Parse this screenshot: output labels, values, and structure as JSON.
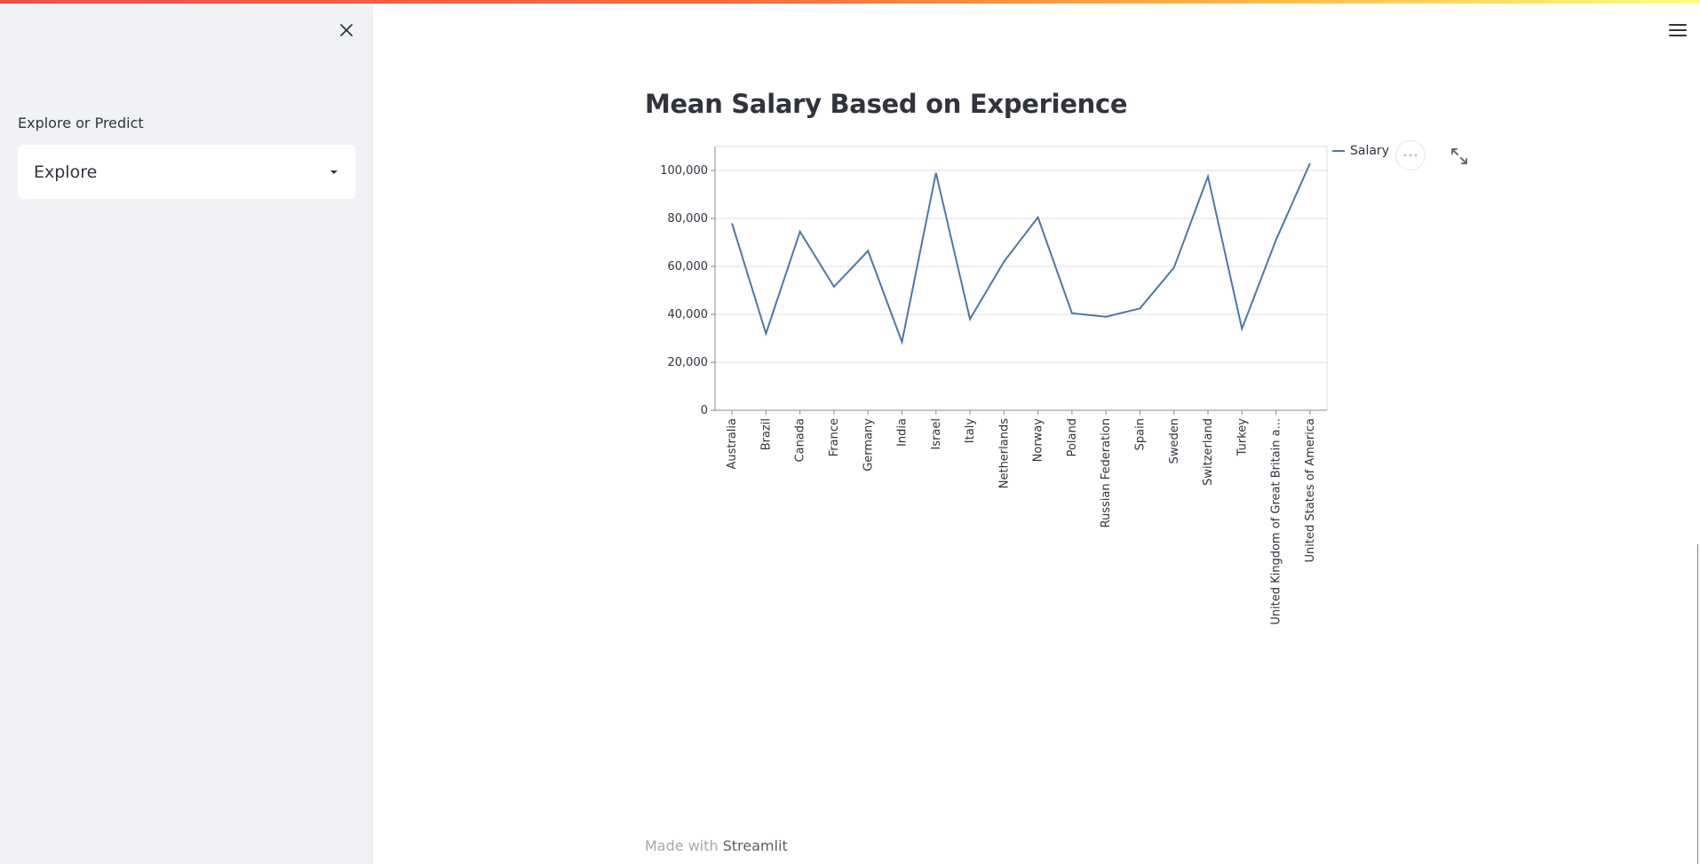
{
  "sidebar": {
    "close_icon": "close-icon",
    "select": {
      "label": "Explore or Predict",
      "value": "Explore"
    }
  },
  "header": {
    "menu_icon": "hamburger-menu-icon"
  },
  "main": {
    "title": "Mean Salary Based on Experience",
    "footer_prefix": "Made with ",
    "footer_link": "Streamlit"
  },
  "chart_data": {
    "type": "line",
    "title": "",
    "xlabel": "",
    "ylabel": "",
    "categories": [
      "Australia",
      "Brazil",
      "Canada",
      "France",
      "Germany",
      "India",
      "Israel",
      "Italy",
      "Netherlands",
      "Norway",
      "Poland",
      "Russian Federation",
      "Spain",
      "Sweden",
      "Switzerland",
      "Turkey",
      "United Kingdom of Great Britain a...",
      "United States of America"
    ],
    "series": [
      {
        "name": "Salary",
        "values": [
          78000,
          32000,
          74500,
          51500,
          66500,
          28500,
          99000,
          38000,
          62000,
          80500,
          40500,
          39000,
          42500,
          59500,
          97500,
          34000,
          71000,
          103000
        ]
      }
    ],
    "ylim": [
      0,
      110000
    ],
    "yticks": [
      0,
      20000,
      40000,
      60000,
      80000,
      100000
    ],
    "ytick_labels": [
      "0",
      "20,000",
      "40,000",
      "60,000",
      "80,000",
      "100,000"
    ],
    "grid": true,
    "legend": "top-right",
    "color": "#4c78a8"
  }
}
